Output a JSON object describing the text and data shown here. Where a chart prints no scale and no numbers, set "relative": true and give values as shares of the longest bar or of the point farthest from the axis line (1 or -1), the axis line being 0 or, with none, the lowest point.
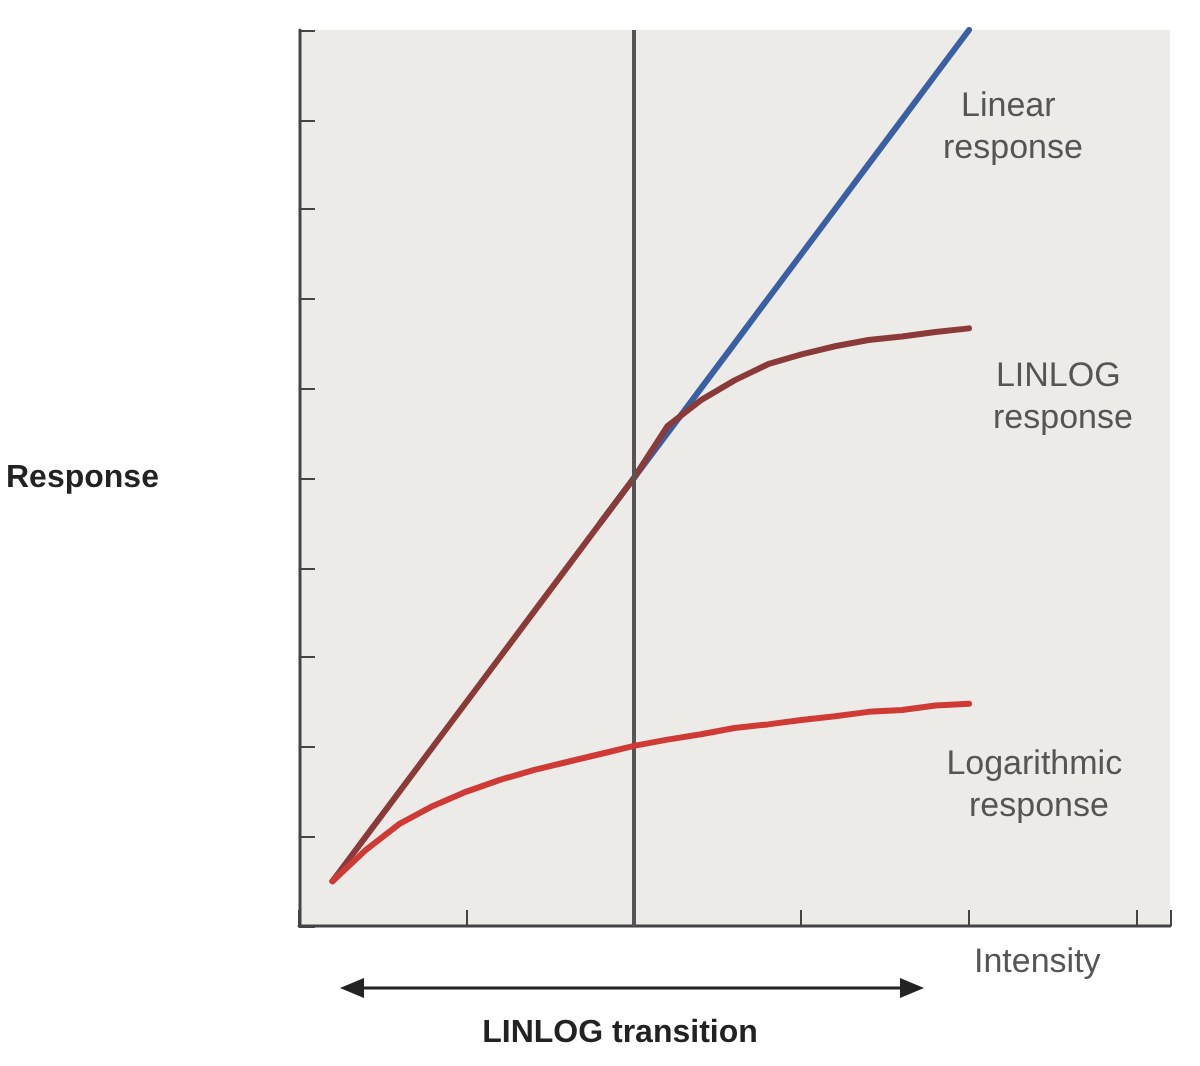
{
  "chart_data": {
    "type": "line",
    "relative": true,
    "ylabel": "Response",
    "xlabel": "Intensity",
    "grid": false,
    "legend": false,
    "marker": "none",
    "line_style": "solid",
    "categories": [
      null,
      null,
      null,
      null,
      null,
      null,
      null,
      null,
      null,
      null,
      null,
      null,
      null,
      null,
      null,
      null,
      null,
      null,
      null,
      null,
      null,
      null,
      null,
      null,
      null,
      null,
      null
    ],
    "series": [
      {
        "name": "Linear response",
        "color": "#3b5fa3",
        "values": [
          null,
          null,
          null,
          null,
          null,
          null,
          null,
          null,
          null,
          0.45,
          0.5,
          0.55,
          0.6,
          0.65,
          0.7,
          0.75,
          0.8,
          0.85,
          0.9,
          0.95,
          1.0,
          null,
          null,
          null,
          null,
          null,
          null
        ]
      },
      {
        "name": "LINLOG response",
        "color": "#8b3a3a",
        "values": [
          null,
          0.05,
          0.1,
          0.15,
          0.2,
          0.25,
          0.3,
          0.35,
          0.4,
          0.45,
          0.5,
          0.558,
          0.587,
          0.609,
          0.627,
          0.638,
          0.647,
          0.654,
          0.658,
          0.663,
          0.667,
          null,
          null,
          null,
          null,
          null,
          null
        ]
      },
      {
        "name": "Logarithmic response",
        "color": "#d03a34",
        "values": [
          null,
          0.05,
          0.085,
          0.114,
          0.134,
          0.15,
          0.163,
          0.174,
          0.183,
          0.192,
          0.201,
          0.208,
          0.214,
          0.221,
          0.225,
          0.23,
          0.234,
          0.239,
          0.241,
          0.246,
          0.248,
          null,
          null,
          null,
          null,
          null,
          null
        ]
      }
    ],
    "annotations": [
      "LINLOG transition"
    ]
  }
}
